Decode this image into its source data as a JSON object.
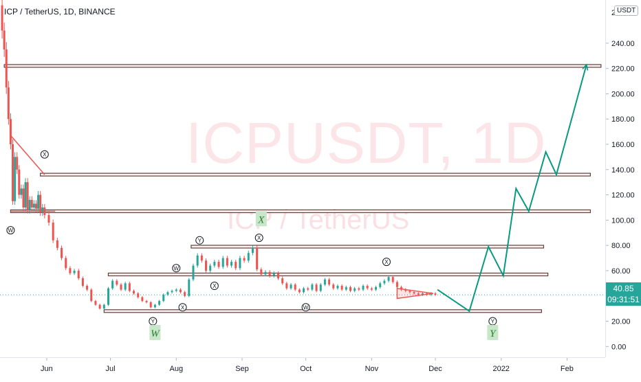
{
  "header": {
    "symbol_title": "ICP / TetherUS, 1D, BINANCE"
  },
  "watermark": {
    "main": "ICPUSDT, 1D",
    "sub": "ICP / TetherUS"
  },
  "price_scale": {
    "currency": "USDT",
    "top_partial_label": "2",
    "current_price": "40.85",
    "countdown": "09:31:51"
  },
  "colors": {
    "up": "#26a69a",
    "down": "#ef5350",
    "projection": "#089981",
    "level_border": "#5d4037",
    "label_green": "#c8e6c9"
  },
  "chart_data": {
    "type": "candlestick",
    "title": "ICP / TetherUS, 1D, BINANCE",
    "ylim": [
      -2,
      272
    ],
    "y_ticks": [
      0,
      20,
      40,
      60,
      80,
      100,
      120,
      140,
      160,
      180,
      200,
      220,
      240
    ],
    "y_tick_labels": [
      "0.00",
      "20.00",
      "40.00",
      "60.00",
      "80.00",
      "100.00",
      "120.00",
      "140.00",
      "160.00",
      "180.00",
      "200.00",
      "220.00",
      "240.00"
    ],
    "x_range": [
      "2021-05-10",
      "2022-02-19"
    ],
    "time_labels": [
      {
        "date": "2021-06-01",
        "label": "Jun"
      },
      {
        "date": "2021-07-01",
        "label": "Jul"
      },
      {
        "date": "2021-08-01",
        "label": "Aug"
      },
      {
        "date": "2021-09-01",
        "label": "Sep"
      },
      {
        "date": "2021-10-01",
        "label": "Oct"
      },
      {
        "date": "2021-11-01",
        "label": "Nov"
      },
      {
        "date": "2021-12-01",
        "label": "Dec"
      },
      {
        "date": "2022-01-01",
        "label": "2022"
      },
      {
        "date": "2022-02-01",
        "label": "Feb"
      }
    ],
    "price_path": [
      [
        "2021-05-10",
        270
      ],
      [
        "2021-05-11",
        250
      ],
      [
        "2021-05-12",
        235
      ],
      [
        "2021-05-13",
        205
      ],
      [
        "2021-05-14",
        180
      ],
      [
        "2021-05-15",
        160
      ],
      [
        "2021-05-16",
        115
      ],
      [
        "2021-05-17",
        150
      ],
      [
        "2021-05-18",
        140
      ],
      [
        "2021-05-19",
        120
      ],
      [
        "2021-05-20",
        125
      ],
      [
        "2021-05-21",
        110
      ],
      [
        "2021-05-22",
        130
      ],
      [
        "2021-05-23",
        108
      ],
      [
        "2021-05-24",
        116
      ],
      [
        "2021-05-25",
        110
      ],
      [
        "2021-05-26",
        113
      ],
      [
        "2021-05-27",
        109
      ],
      [
        "2021-05-28",
        120
      ],
      [
        "2021-05-29",
        106
      ],
      [
        "2021-05-30",
        110
      ],
      [
        "2021-05-31",
        104
      ],
      [
        "2021-06-02",
        98
      ],
      [
        "2021-06-04",
        84
      ],
      [
        "2021-06-06",
        78
      ],
      [
        "2021-06-08",
        70
      ],
      [
        "2021-06-10",
        62
      ],
      [
        "2021-06-12",
        58
      ],
      [
        "2021-06-14",
        60
      ],
      [
        "2021-06-16",
        54
      ],
      [
        "2021-06-18",
        48
      ],
      [
        "2021-06-20",
        45
      ],
      [
        "2021-06-22",
        36
      ],
      [
        "2021-06-24",
        33
      ],
      [
        "2021-06-26",
        30
      ],
      [
        "2021-06-28",
        33
      ],
      [
        "2021-06-30",
        46
      ],
      [
        "2021-07-02",
        52
      ],
      [
        "2021-07-04",
        49
      ],
      [
        "2021-07-06",
        45
      ],
      [
        "2021-07-08",
        50
      ],
      [
        "2021-07-10",
        44
      ],
      [
        "2021-07-12",
        42
      ],
      [
        "2021-07-14",
        39
      ],
      [
        "2021-07-16",
        36
      ],
      [
        "2021-07-18",
        35
      ],
      [
        "2021-07-20",
        31
      ],
      [
        "2021-07-22",
        33
      ],
      [
        "2021-07-24",
        36
      ],
      [
        "2021-07-26",
        41
      ],
      [
        "2021-07-28",
        43
      ],
      [
        "2021-07-30",
        44
      ],
      [
        "2021-08-01",
        45
      ],
      [
        "2021-08-03",
        43
      ],
      [
        "2021-08-05",
        40
      ],
      [
        "2021-08-07",
        53
      ],
      [
        "2021-08-09",
        64
      ],
      [
        "2021-08-11",
        72
      ],
      [
        "2021-08-13",
        68
      ],
      [
        "2021-08-15",
        60
      ],
      [
        "2021-08-17",
        64
      ],
      [
        "2021-08-19",
        67
      ],
      [
        "2021-08-21",
        63
      ],
      [
        "2021-08-23",
        70
      ],
      [
        "2021-08-25",
        64
      ],
      [
        "2021-08-27",
        67
      ],
      [
        "2021-08-29",
        62
      ],
      [
        "2021-08-31",
        70
      ],
      [
        "2021-09-02",
        68
      ],
      [
        "2021-09-04",
        74
      ],
      [
        "2021-09-06",
        78
      ],
      [
        "2021-09-08",
        61
      ],
      [
        "2021-09-10",
        57
      ],
      [
        "2021-09-12",
        59
      ],
      [
        "2021-09-14",
        56
      ],
      [
        "2021-09-16",
        58
      ],
      [
        "2021-09-18",
        54
      ],
      [
        "2021-09-20",
        50
      ],
      [
        "2021-09-22",
        46
      ],
      [
        "2021-09-24",
        49
      ],
      [
        "2021-09-26",
        45
      ],
      [
        "2021-09-28",
        43
      ],
      [
        "2021-09-30",
        46
      ],
      [
        "2021-10-02",
        45
      ],
      [
        "2021-10-04",
        49
      ],
      [
        "2021-10-06",
        44
      ],
      [
        "2021-10-08",
        49
      ],
      [
        "2021-10-10",
        53
      ],
      [
        "2021-10-12",
        49
      ],
      [
        "2021-10-14",
        46
      ],
      [
        "2021-10-16",
        48
      ],
      [
        "2021-10-18",
        45
      ],
      [
        "2021-10-20",
        47
      ],
      [
        "2021-10-22",
        44
      ],
      [
        "2021-10-24",
        46
      ],
      [
        "2021-10-26",
        45
      ],
      [
        "2021-10-28",
        48
      ],
      [
        "2021-10-30",
        46
      ],
      [
        "2021-11-01",
        45
      ],
      [
        "2021-11-03",
        47
      ],
      [
        "2021-11-05",
        50
      ],
      [
        "2021-11-07",
        52
      ],
      [
        "2021-11-09",
        55
      ],
      [
        "2021-11-11",
        51
      ],
      [
        "2021-11-13",
        47
      ],
      [
        "2021-11-15",
        45
      ],
      [
        "2021-11-17",
        44
      ],
      [
        "2021-11-19",
        43
      ],
      [
        "2021-11-21",
        42
      ],
      [
        "2021-11-23",
        41
      ],
      [
        "2021-11-25",
        42
      ],
      [
        "2021-11-27",
        41
      ],
      [
        "2021-11-29",
        42
      ],
      [
        "2021-12-01",
        41
      ]
    ],
    "levels": [
      {
        "y": 222,
        "from": "2021-05-12",
        "to": "2022-02-17"
      },
      {
        "y": 136,
        "from": "2021-05-29",
        "to": "2022-02-12"
      },
      {
        "y": 107,
        "from": "2021-05-15",
        "to": "2022-02-12"
      },
      {
        "y": 79,
        "from": "2021-08-08",
        "to": "2022-01-21"
      },
      {
        "y": 57,
        "from": "2021-06-30",
        "to": "2022-01-23"
      },
      {
        "y": 28,
        "from": "2021-06-28",
        "to": "2022-01-20"
      }
    ],
    "trend_lines": [
      {
        "points": [
          [
            "2021-05-15",
            167
          ],
          [
            "2021-05-31",
            136
          ]
        ]
      },
      {
        "points": [
          [
            "2021-05-15",
            107
          ],
          [
            "2021-06-05",
            107
          ]
        ]
      }
    ],
    "projection_path": [
      [
        "2021-12-02",
        45
      ],
      [
        "2021-12-17",
        28
      ],
      [
        "2021-12-26",
        79
      ],
      [
        "2022-01-02",
        56
      ],
      [
        "2022-01-08",
        125
      ],
      [
        "2022-01-14",
        107
      ],
      [
        "2022-01-22",
        154
      ],
      [
        "2022-01-27",
        136
      ],
      [
        "2022-02-10",
        222
      ]
    ],
    "wave_labels": [
      {
        "text": "W",
        "date": "2021-05-15",
        "y": 92
      },
      {
        "text": "X",
        "date": "2021-05-31",
        "y": 152
      },
      {
        "text": "Y",
        "date": "2021-07-21",
        "y": 20
      },
      {
        "text": "Y",
        "date": "2021-08-12",
        "y": 84
      },
      {
        "text": "W",
        "date": "2021-08-01",
        "y": 62
      },
      {
        "text": "X",
        "date": "2021-08-19",
        "y": 48
      },
      {
        "text": "X",
        "date": "2021-09-09",
        "y": 86
      },
      {
        "text": "X",
        "date": "2021-08-04",
        "y": 31
      },
      {
        "text": "W",
        "date": "2021-10-01",
        "y": 31
      },
      {
        "text": "X",
        "date": "2021-11-08",
        "y": 67
      },
      {
        "text": "Y",
        "date": "2021-12-28",
        "y": 20
      }
    ],
    "big_labels": [
      {
        "text": "W",
        "date": "2021-07-22",
        "y": 10
      },
      {
        "text": "X",
        "date": "2021-09-10",
        "y": 100
      },
      {
        "text": "Y",
        "date": "2021-12-28",
        "y": 10
      }
    ],
    "triangle": [
      [
        "2021-11-13",
        46
      ],
      [
        "2021-11-30",
        42
      ],
      [
        "2021-11-13",
        38
      ]
    ]
  }
}
